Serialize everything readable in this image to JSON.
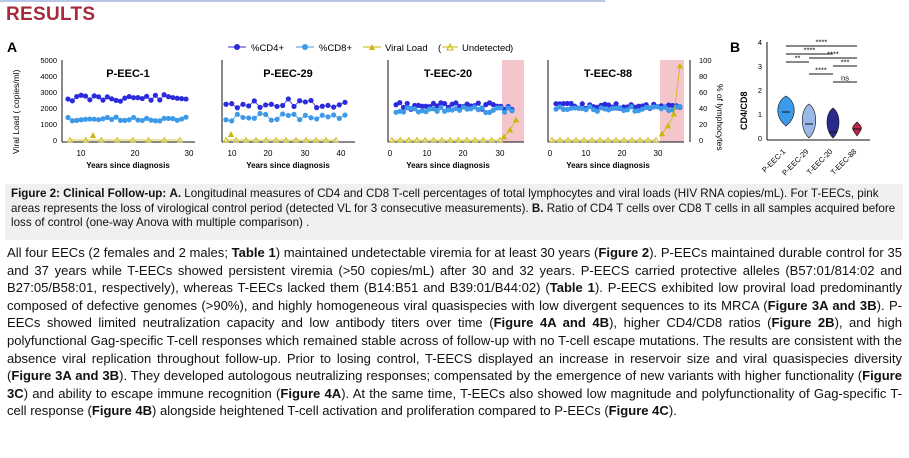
{
  "section_title": "RESULTS",
  "figure": {
    "panel_a_label": "A",
    "panel_b_label": "B",
    "legend": {
      "cd4": "%CD4+",
      "cd8": "%CD8+",
      "vl": "Viral Load",
      "undetected": "Undetected"
    },
    "colors": {
      "cd4": "#2b2bdc",
      "cd8": "#3d9ae8",
      "vl": "#c9b90a",
      "pink": "#f4c6cc"
    },
    "y_left_label": "Viral Load ( copies/ml)",
    "y_right_label": "% of lymphocytes",
    "y_left_ticks": [
      "5000",
      "4000",
      "3000",
      "2000",
      "1000",
      "0"
    ],
    "y_right_ticks": [
      "100",
      "80",
      "60",
      "40",
      "20",
      "0"
    ],
    "x_label": "Years since diagnosis",
    "subplots": [
      {
        "title": "P-EEC-1",
        "xticks": [
          "10",
          "20",
          "30"
        ]
      },
      {
        "title": "P-EEC-29",
        "xticks": [
          "10",
          "20",
          "30",
          "40"
        ]
      },
      {
        "title": "T-EEC-20",
        "xticks": [
          "0",
          "10",
          "20",
          "30"
        ]
      },
      {
        "title": "T-EEC-88",
        "xticks": [
          "0",
          "10",
          "20",
          "30"
        ]
      }
    ],
    "violin": {
      "y_label": "CD4/CD8",
      "y_ticks": [
        "4",
        "3",
        "2",
        "1",
        "0"
      ],
      "groups": [
        "P-EEC-1",
        "P-EEC-29",
        "T-EEC-20",
        "T-EEC-88"
      ],
      "colors": [
        "#3d9ae8",
        "#9ab8e8",
        "#2a2a8e",
        "#b42a4a"
      ],
      "significance": [
        "****",
        "****",
        "**",
        "****",
        "***",
        "****",
        "ns"
      ]
    }
  },
  "caption": {
    "title": "Figure 2: Clinical Follow-up:",
    "label_a": "A.",
    "text_a": "Longitudinal measures of CD4 and CD8 T-cell percentages of total lymphocytes and viral loads (HIV RNA copies/mL). For T-EECs, pink areas represents the loss of virological control period (detected VL for 3 consecutive measurements).",
    "label_b": "B.",
    "text_b": "Ratio of CD4 T cells over CD8 T cells in all samples acquired before loss of control (one-way Anova with multiple comparison) ."
  },
  "body": {
    "s1": "All four EECs (2 females and 2 males;",
    "b1": "Table 1",
    "s2": ") maintained undetectable viremia for at least 30 years (",
    "b2": "Figure 2",
    "s3": "). P-EECs maintained durable control for 35 and 37 years while T-EECs showed persistent viremia (>50 copies/mL) after 30 and 32 years. P-EECS carried protective alleles (B57:01/814:02 and B27:05/B58:01, respectively), whereas T-EECs lacked them (B14:B51 and B39:01/B44:02) (",
    "b3": "Table 1",
    "s4": "). P-EECS exhibited low proviral load predominantly composed of defective genomes (>90%), and highly homogeneous viral quasispecies with low divergent sequences to its MRCA (",
    "b4": "Figure 3A and 3B",
    "s5": "). P-EECs showed limited neutralization capacity and low antibody titers over time (",
    "b5": "Figure 4A and 4B",
    "s6": "), higher CD4/CD8 ratios (",
    "b6": "Figure 2B",
    "s7": "), and high polyfunctional Gag-specific T-cell responses which remained stable across of follow-up with no T-cell escape mutations. The results are consistent with the absence viral replication throughout follow-up. Prior to losing control, T-EECS displayed an increase in reservoir size and viral quasispecies diversity (",
    "b7": "Figure 3A and 3B",
    "s8": "). They developed autologous neutralizing responses; compensated by the emergence of new variants with higher functionality (",
    "b8": "Figure 3C",
    "s9": ") and ability to escape immune recognition (",
    "b9": "Figure 4A",
    "s10": "). At the same time, T-EECs also showed low magnitude and polyfunctionality of Gag-specific T-cell response (",
    "b10": "Figure 4B",
    "s11": ") alongside heightened T-cell activation and proliferation compared to P-EECs (",
    "b11": "Figure 4C",
    "s12": ")."
  }
}
